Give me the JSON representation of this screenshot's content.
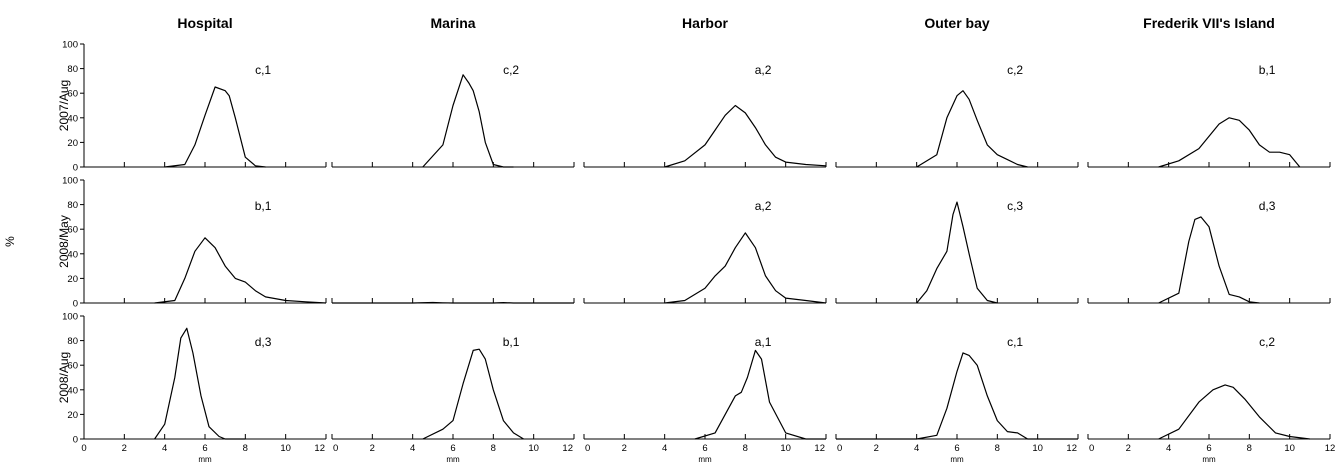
{
  "chart_data": {
    "type": "line",
    "columns": [
      "Hospital",
      "Marina",
      "Harbor",
      "Outer bay",
      "Frederik VII's Island"
    ],
    "rows": [
      "2007/Aug",
      "2008/May",
      "2008/Aug"
    ],
    "ylabel": "%",
    "xlabel": "mm",
    "xlim": [
      0,
      12
    ],
    "ylim": [
      0,
      100
    ],
    "x_ticks": [
      0,
      2,
      4,
      6,
      8,
      10,
      12
    ],
    "x_tick_labels": [
      "0",
      "2",
      "4",
      "6",
      "8",
      "10",
      "12"
    ],
    "y_ticks": [
      0,
      20,
      40,
      60,
      80,
      100
    ],
    "y_tick_labels": [
      "0",
      "20",
      "40",
      "60",
      "80",
      "100"
    ],
    "panels": [
      {
        "row": 0,
        "col": 0,
        "annotation": "c,1",
        "x": [
          4,
          5,
          5.5,
          6,
          6.5,
          7,
          7.2,
          7.5,
          8,
          8.5,
          9
        ],
        "y": [
          0,
          2,
          18,
          42,
          65,
          62,
          58,
          40,
          8,
          1,
          0
        ]
      },
      {
        "row": 0,
        "col": 1,
        "annotation": "c,2",
        "x": [
          4.5,
          5.5,
          6,
          6.5,
          6.8,
          7,
          7.3,
          7.6,
          8,
          8.5,
          9
        ],
        "y": [
          0,
          18,
          50,
          75,
          68,
          62,
          45,
          20,
          2,
          0,
          0
        ]
      },
      {
        "row": 0,
        "col": 2,
        "annotation": "a,2",
        "x": [
          4,
          5,
          6,
          6.5,
          7,
          7.5,
          8,
          8.5,
          9,
          9.5,
          10,
          11,
          12
        ],
        "y": [
          0,
          5,
          18,
          30,
          42,
          50,
          44,
          32,
          18,
          8,
          4,
          2,
          1
        ]
      },
      {
        "row": 0,
        "col": 3,
        "annotation": "c,2",
        "x": [
          4,
          5,
          5.5,
          6,
          6.3,
          6.6,
          7,
          7.5,
          8,
          8.5,
          9,
          9.5
        ],
        "y": [
          0,
          10,
          40,
          58,
          62,
          55,
          38,
          18,
          10,
          6,
          2,
          0
        ]
      },
      {
        "row": 0,
        "col": 4,
        "annotation": "b,1",
        "x": [
          3.5,
          4.5,
          5.5,
          6.5,
          7,
          7.5,
          8,
          8.5,
          9,
          9.5,
          10,
          10.5
        ],
        "y": [
          0,
          5,
          15,
          35,
          40,
          38,
          30,
          18,
          12,
          12,
          10,
          0
        ]
      },
      {
        "row": 1,
        "col": 0,
        "annotation": "b,1",
        "x": [
          3.5,
          4.5,
          5,
          5.5,
          6,
          6.5,
          7,
          7.5,
          8,
          8.5,
          9,
          10,
          11,
          12
        ],
        "y": [
          0,
          2,
          20,
          42,
          53,
          45,
          30,
          20,
          17,
          10,
          5,
          2,
          1,
          0
        ]
      },
      {
        "row": 1,
        "col": 1,
        "annotation": "",
        "x": [
          0,
          2,
          4,
          5,
          5.5,
          6,
          7,
          8,
          8.5,
          9,
          10,
          12
        ],
        "y": [
          0,
          0,
          0,
          0.4,
          0.2,
          0,
          0,
          0,
          0.3,
          0,
          0,
          0
        ]
      },
      {
        "row": 1,
        "col": 2,
        "annotation": "a,2",
        "x": [
          4,
          5,
          6,
          6.5,
          7,
          7.5,
          8,
          8.5,
          9,
          9.5,
          10,
          11,
          12
        ],
        "y": [
          0,
          2,
          12,
          22,
          30,
          45,
          57,
          45,
          22,
          10,
          4,
          2,
          0
        ]
      },
      {
        "row": 1,
        "col": 3,
        "annotation": "c,3",
        "x": [
          4,
          4.5,
          5,
          5.5,
          5.8,
          6,
          6.3,
          6.6,
          7,
          7.5,
          8
        ],
        "y": [
          0,
          10,
          28,
          42,
          72,
          82,
          62,
          40,
          12,
          2,
          0
        ]
      },
      {
        "row": 1,
        "col": 4,
        "annotation": "d,3",
        "x": [
          3.5,
          4.5,
          5,
          5.3,
          5.6,
          6,
          6.5,
          7,
          7.5,
          8,
          8.5
        ],
        "y": [
          0,
          8,
          50,
          68,
          70,
          62,
          30,
          7,
          5,
          1,
          0
        ]
      },
      {
        "row": 2,
        "col": 0,
        "annotation": "d,3",
        "x": [
          3.5,
          4,
          4.5,
          4.8,
          5.1,
          5.4,
          5.8,
          6.2,
          6.7,
          7,
          8
        ],
        "y": [
          0,
          12,
          50,
          82,
          90,
          70,
          35,
          10,
          2,
          0,
          0
        ]
      },
      {
        "row": 2,
        "col": 1,
        "annotation": "b,1",
        "x": [
          4.5,
          5.5,
          6,
          6.5,
          7,
          7.3,
          7.6,
          8,
          8.5,
          9,
          9.5
        ],
        "y": [
          0,
          8,
          15,
          45,
          72,
          73,
          65,
          40,
          15,
          5,
          0
        ]
      },
      {
        "row": 2,
        "col": 2,
        "annotation": "a,1",
        "x": [
          5.5,
          6.5,
          7,
          7.5,
          7.8,
          8.1,
          8.5,
          8.8,
          9.2,
          10,
          11,
          12
        ],
        "y": [
          0,
          5,
          20,
          35,
          38,
          50,
          72,
          65,
          30,
          5,
          0,
          0
        ]
      },
      {
        "row": 2,
        "col": 3,
        "annotation": "c,1",
        "x": [
          0,
          4,
          5,
          5.5,
          6,
          6.3,
          6.6,
          7,
          7.5,
          8,
          8.5,
          9,
          9.5,
          12
        ],
        "y": [
          0,
          0,
          3,
          25,
          55,
          70,
          68,
          60,
          35,
          15,
          6,
          5,
          0,
          0
        ]
      },
      {
        "row": 2,
        "col": 4,
        "annotation": "c,2",
        "x": [
          3.5,
          4.5,
          5.5,
          6.2,
          6.8,
          7.2,
          7.8,
          8.5,
          9.3,
          10,
          11
        ],
        "y": [
          0,
          8,
          30,
          40,
          44,
          42,
          32,
          18,
          5,
          2,
          0
        ]
      }
    ]
  }
}
